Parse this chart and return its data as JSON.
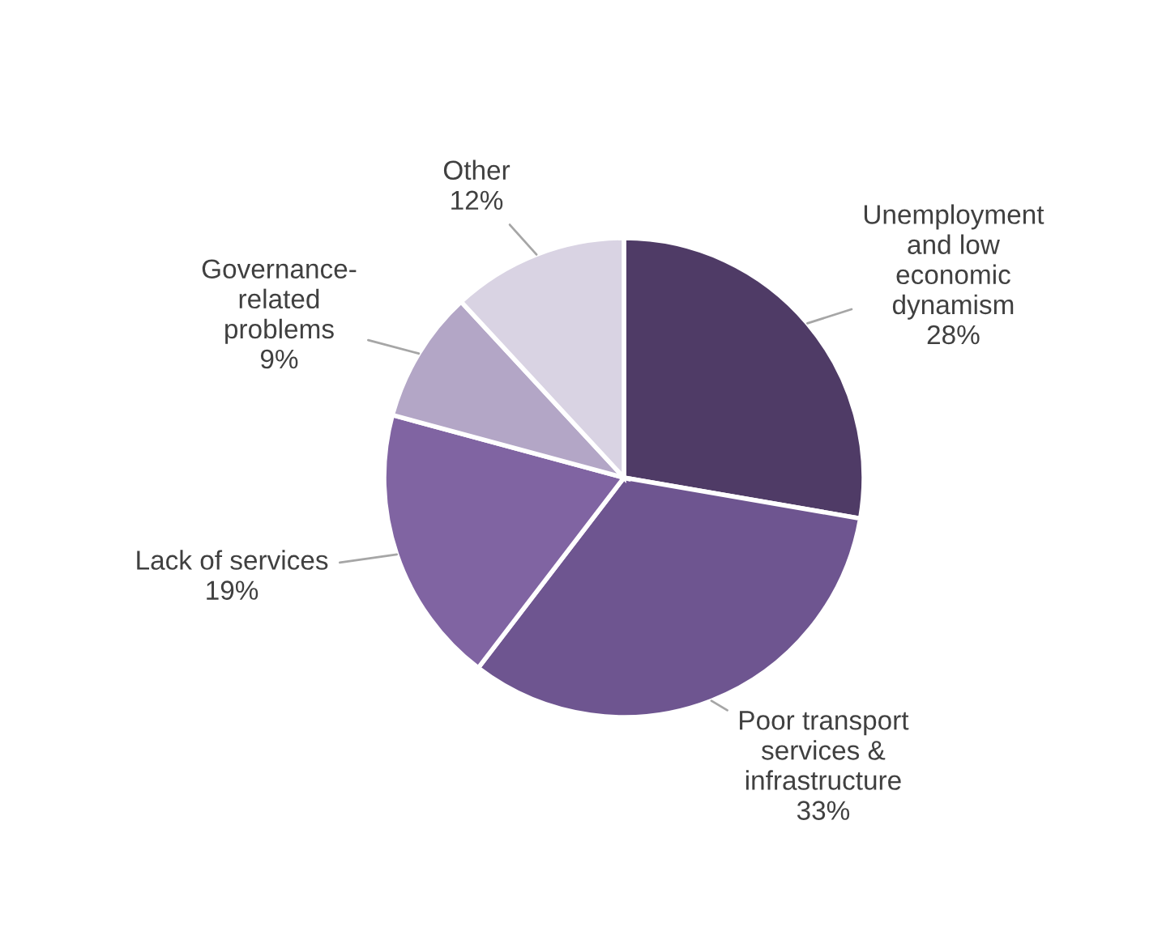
{
  "chart_data": {
    "type": "pie",
    "categories": [
      "Unemployment\nand low\neconomic\ndynamism",
      "Poor transport\nservices &\ninfrastructure",
      "Lack of services",
      "Governance-\nrelated\nproblems",
      "Other"
    ],
    "values": [
      28,
      33,
      19,
      9,
      12
    ],
    "value_labels": [
      "28%",
      "33%",
      "19%",
      "9%",
      "12%"
    ],
    "colors": [
      "#4f3b66",
      "#6e5590",
      "#8064a2",
      "#b3a6c6",
      "#d9d3e3"
    ]
  }
}
